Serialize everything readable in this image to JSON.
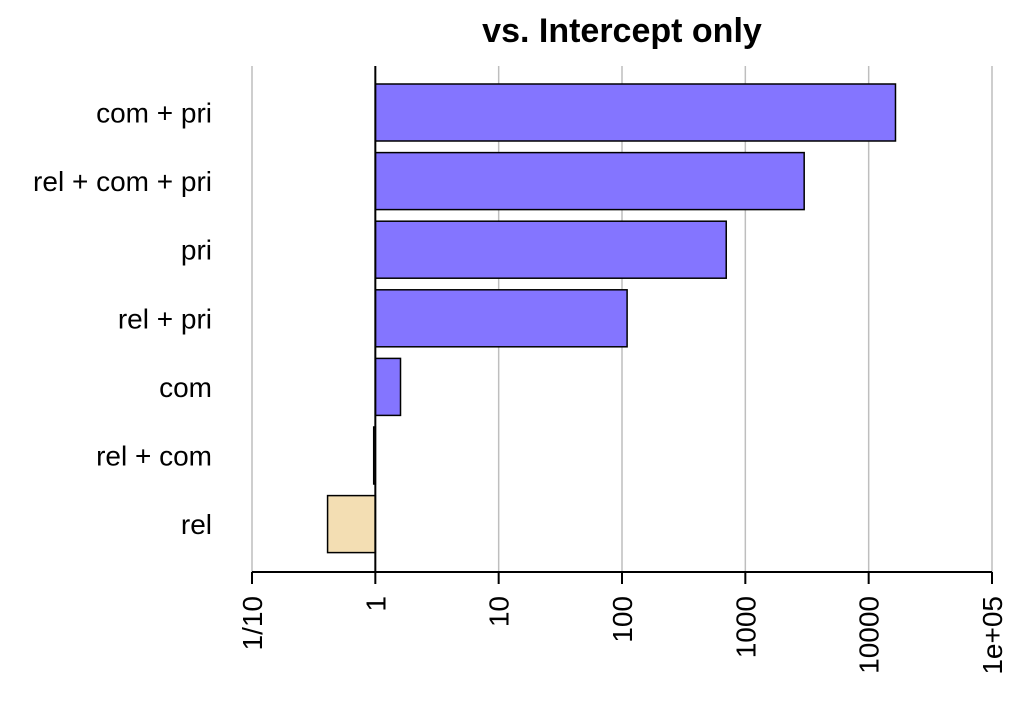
{
  "chart_data": {
    "type": "bar",
    "orientation": "horizontal",
    "title": "vs. Intercept only",
    "xlabel": "",
    "ylabel": "",
    "x_scale": "log10",
    "xlim": [
      0.1,
      100000
    ],
    "grid": true,
    "categories": [
      "com + pri",
      "rel + com + pri",
      "pri",
      "rel + pri",
      "com",
      "rel + com",
      "rel"
    ],
    "values": [
      16500,
      3000,
      700,
      110,
      1.6,
      0.97,
      0.41
    ],
    "tick_values": [
      0.1,
      1,
      10,
      100,
      1000,
      10000,
      100000
    ],
    "tick_labels": [
      "1/10",
      "1",
      "10",
      "100",
      "1000",
      "10000",
      "1e+05"
    ],
    "colors": {
      "above_baseline": "#8475ff",
      "below_baseline": "#f3deb3",
      "grid": "#bebebe",
      "axis": "#000000"
    }
  }
}
